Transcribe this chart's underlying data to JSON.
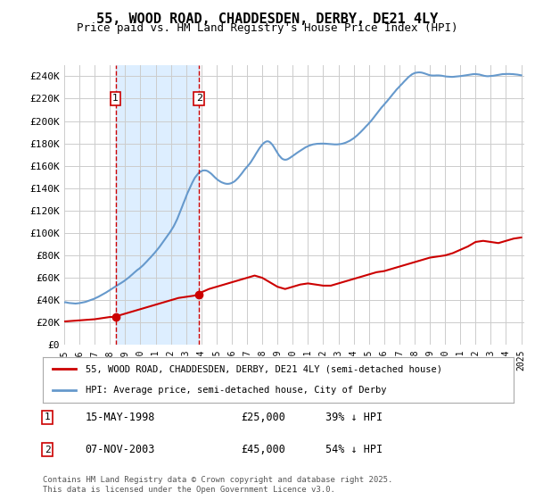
{
  "title": "55, WOOD ROAD, CHADDESDEN, DERBY, DE21 4LY",
  "subtitle": "Price paid vs. HM Land Registry's House Price Index (HPI)",
  "ylabel": "",
  "xlabel": "",
  "ylim": [
    0,
    250000
  ],
  "yticks": [
    0,
    20000,
    40000,
    60000,
    80000,
    100000,
    120000,
    140000,
    160000,
    180000,
    200000,
    220000,
    240000
  ],
  "ytick_labels": [
    "£0",
    "£20K",
    "£40K",
    "£60K",
    "£80K",
    "£100K",
    "£120K",
    "£140K",
    "£160K",
    "£180K",
    "£200K",
    "£220K",
    "£240K"
  ],
  "transactions": [
    {
      "date_num": 1998.37,
      "price": 25000,
      "label": "1",
      "date_str": "15-MAY-1998",
      "pct": "39%"
    },
    {
      "date_num": 2003.85,
      "price": 45000,
      "label": "2",
      "date_str": "07-NOV-2003",
      "pct": "54%"
    }
  ],
  "red_line_color": "#cc0000",
  "blue_line_color": "#6699cc",
  "shade_color": "#ddeeff",
  "vline_color": "#cc0000",
  "grid_color": "#cccccc",
  "background_color": "#ffffff",
  "legend_label_red": "55, WOOD ROAD, CHADDESDEN, DERBY, DE21 4LY (semi-detached house)",
  "legend_label_blue": "HPI: Average price, semi-detached house, City of Derby",
  "footer": "Contains HM Land Registry data © Crown copyright and database right 2025.\nThis data is licensed under the Open Government Licence v3.0.",
  "hpi_data": {
    "years": [
      1995.0,
      1995.08,
      1995.17,
      1995.25,
      1995.33,
      1995.42,
      1995.5,
      1995.58,
      1995.67,
      1995.75,
      1995.83,
      1995.92,
      1996.0,
      1996.08,
      1996.17,
      1996.25,
      1996.33,
      1996.42,
      1996.5,
      1996.58,
      1996.67,
      1996.75,
      1996.83,
      1996.92,
      1997.0,
      1997.08,
      1997.17,
      1997.25,
      1997.33,
      1997.42,
      1997.5,
      1997.58,
      1997.67,
      1997.75,
      1997.83,
      1997.92,
      1998.0,
      1998.08,
      1998.17,
      1998.25,
      1998.33,
      1998.42,
      1998.5,
      1998.58,
      1998.67,
      1998.75,
      1998.83,
      1998.92,
      1999.0,
      1999.08,
      1999.17,
      1999.25,
      1999.33,
      1999.42,
      1999.5,
      1999.58,
      1999.67,
      1999.75,
      1999.83,
      1999.92,
      2000.0,
      2000.08,
      2000.17,
      2000.25,
      2000.33,
      2000.42,
      2000.5,
      2000.58,
      2000.67,
      2000.75,
      2000.83,
      2000.92,
      2001.0,
      2001.08,
      2001.17,
      2001.25,
      2001.33,
      2001.42,
      2001.5,
      2001.58,
      2001.67,
      2001.75,
      2001.83,
      2001.92,
      2002.0,
      2002.08,
      2002.17,
      2002.25,
      2002.33,
      2002.42,
      2002.5,
      2002.58,
      2002.67,
      2002.75,
      2002.83,
      2002.92,
      2003.0,
      2003.08,
      2003.17,
      2003.25,
      2003.33,
      2003.42,
      2003.5,
      2003.58,
      2003.67,
      2003.75,
      2003.83,
      2003.92,
      2004.0,
      2004.08,
      2004.17,
      2004.25,
      2004.33,
      2004.42,
      2004.5,
      2004.58,
      2004.67,
      2004.75,
      2004.83,
      2004.92,
      2005.0,
      2005.08,
      2005.17,
      2005.25,
      2005.33,
      2005.42,
      2005.5,
      2005.58,
      2005.67,
      2005.75,
      2005.83,
      2005.92,
      2006.0,
      2006.08,
      2006.17,
      2006.25,
      2006.33,
      2006.42,
      2006.5,
      2006.58,
      2006.67,
      2006.75,
      2006.83,
      2006.92,
      2007.0,
      2007.08,
      2007.17,
      2007.25,
      2007.33,
      2007.42,
      2007.5,
      2007.58,
      2007.67,
      2007.75,
      2007.83,
      2007.92,
      2008.0,
      2008.08,
      2008.17,
      2008.25,
      2008.33,
      2008.42,
      2008.5,
      2008.58,
      2008.67,
      2008.75,
      2008.83,
      2008.92,
      2009.0,
      2009.08,
      2009.17,
      2009.25,
      2009.33,
      2009.42,
      2009.5,
      2009.58,
      2009.67,
      2009.75,
      2009.83,
      2009.92,
      2010.0,
      2010.08,
      2010.17,
      2010.25,
      2010.33,
      2010.42,
      2010.5,
      2010.58,
      2010.67,
      2010.75,
      2010.83,
      2010.92,
      2011.0,
      2011.08,
      2011.17,
      2011.25,
      2011.33,
      2011.42,
      2011.5,
      2011.58,
      2011.67,
      2011.75,
      2011.83,
      2011.92,
      2012.0,
      2012.08,
      2012.17,
      2012.25,
      2012.33,
      2012.42,
      2012.5,
      2012.58,
      2012.67,
      2012.75,
      2012.83,
      2012.92,
      2013.0,
      2013.08,
      2013.17,
      2013.25,
      2013.33,
      2013.42,
      2013.5,
      2013.58,
      2013.67,
      2013.75,
      2013.83,
      2013.92,
      2014.0,
      2014.08,
      2014.17,
      2014.25,
      2014.33,
      2014.42,
      2014.5,
      2014.58,
      2014.67,
      2014.75,
      2014.83,
      2014.92,
      2015.0,
      2015.08,
      2015.17,
      2015.25,
      2015.33,
      2015.42,
      2015.5,
      2015.58,
      2015.67,
      2015.75,
      2015.83,
      2015.92,
      2016.0,
      2016.08,
      2016.17,
      2016.25,
      2016.33,
      2016.42,
      2016.5,
      2016.58,
      2016.67,
      2016.75,
      2016.83,
      2016.92,
      2017.0,
      2017.08,
      2017.17,
      2017.25,
      2017.33,
      2017.42,
      2017.5,
      2017.58,
      2017.67,
      2017.75,
      2017.83,
      2017.92,
      2018.0,
      2018.08,
      2018.17,
      2018.25,
      2018.33,
      2018.42,
      2018.5,
      2018.58,
      2018.67,
      2018.75,
      2018.83,
      2018.92,
      2019.0,
      2019.08,
      2019.17,
      2019.25,
      2019.33,
      2019.42,
      2019.5,
      2019.58,
      2019.67,
      2019.75,
      2019.83,
      2019.92,
      2020.0,
      2020.08,
      2020.17,
      2020.25,
      2020.33,
      2020.42,
      2020.5,
      2020.58,
      2020.67,
      2020.75,
      2020.83,
      2020.92,
      2021.0,
      2021.08,
      2021.17,
      2021.25,
      2021.33,
      2021.42,
      2021.5,
      2021.58,
      2021.67,
      2021.75,
      2021.83,
      2021.92,
      2022.0,
      2022.08,
      2022.17,
      2022.25,
      2022.33,
      2022.42,
      2022.5,
      2022.58,
      2022.67,
      2022.75,
      2022.83,
      2022.92,
      2023.0,
      2023.08,
      2023.17,
      2023.25,
      2023.33,
      2023.42,
      2023.5,
      2023.58,
      2023.67,
      2023.75,
      2023.83,
      2023.92,
      2024.0,
      2024.08,
      2024.17,
      2024.25,
      2024.33,
      2024.42,
      2024.5,
      2024.58,
      2024.67,
      2024.75,
      2024.83,
      2024.92,
      2025.0
    ],
    "values": [
      38000,
      38200,
      37900,
      37700,
      37500,
      37400,
      37300,
      37200,
      37100,
      37000,
      37100,
      37200,
      37400,
      37600,
      37800,
      38000,
      38300,
      38600,
      39000,
      39400,
      39800,
      40200,
      40600,
      41000,
      41500,
      42000,
      42500,
      43100,
      43700,
      44300,
      44900,
      45500,
      46200,
      46900,
      47600,
      48300,
      49000,
      49800,
      50500,
      51200,
      52000,
      52700,
      53400,
      54100,
      54800,
      55500,
      56200,
      57000,
      57800,
      58600,
      59500,
      60400,
      61400,
      62400,
      63400,
      64400,
      65400,
      66400,
      67300,
      68100,
      69000,
      70000,
      71100,
      72200,
      73400,
      74600,
      75800,
      77000,
      78200,
      79500,
      80700,
      82000,
      83300,
      84700,
      86100,
      87500,
      89000,
      90600,
      92100,
      93700,
      95300,
      97000,
      98600,
      100200,
      101900,
      103700,
      105600,
      107700,
      110000,
      112500,
      115200,
      118000,
      120900,
      123800,
      126700,
      129600,
      132500,
      135300,
      138000,
      140600,
      143000,
      145300,
      147400,
      149400,
      151000,
      152500,
      153700,
      154600,
      155200,
      155700,
      155900,
      155900,
      155700,
      155200,
      154500,
      153700,
      152700,
      151600,
      150400,
      149300,
      148300,
      147400,
      146600,
      145900,
      145300,
      144800,
      144400,
      144100,
      143900,
      143900,
      144000,
      144300,
      144700,
      145300,
      146000,
      146900,
      148000,
      149200,
      150500,
      151900,
      153400,
      154900,
      156400,
      157800,
      159100,
      160400,
      161800,
      163300,
      165000,
      166800,
      168700,
      170600,
      172500,
      174300,
      176000,
      177600,
      178900,
      180100,
      181000,
      181600,
      181900,
      181700,
      181100,
      180100,
      178700,
      177100,
      175300,
      173400,
      171500,
      169700,
      168200,
      167000,
      166100,
      165600,
      165400,
      165500,
      165900,
      166500,
      167200,
      168000,
      168800,
      169600,
      170400,
      171200,
      172000,
      172800,
      173600,
      174300,
      175100,
      175800,
      176400,
      177000,
      177500,
      178000,
      178400,
      178800,
      179100,
      179300,
      179500,
      179600,
      179700,
      179700,
      179800,
      179800,
      179800,
      179800,
      179700,
      179600,
      179500,
      179400,
      179300,
      179200,
      179100,
      179100,
      179100,
      179100,
      179200,
      179300,
      179500,
      179700,
      180000,
      180400,
      180800,
      181300,
      181800,
      182400,
      183100,
      183800,
      184600,
      185500,
      186400,
      187400,
      188500,
      189600,
      190700,
      191900,
      193100,
      194300,
      195500,
      196700,
      197900,
      199200,
      200500,
      201900,
      203300,
      204800,
      206300,
      207800,
      209300,
      210700,
      212100,
      213400,
      214700,
      216000,
      217300,
      218600,
      220000,
      221400,
      222800,
      224200,
      225600,
      227000,
      228300,
      229500,
      230700,
      231900,
      233100,
      234300,
      235500,
      236700,
      237900,
      239000,
      240000,
      240900,
      241700,
      242300,
      242800,
      243100,
      243300,
      243400,
      243400,
      243300,
      243100,
      242800,
      242400,
      242000,
      241600,
      241200,
      240900,
      240700,
      240600,
      240600,
      240600,
      240700,
      240700,
      240700,
      240600,
      240500,
      240300,
      240100,
      239900,
      239700,
      239600,
      239500,
      239400,
      239400,
      239400,
      239500,
      239600,
      239700,
      239800,
      239900,
      240000,
      240200,
      240400,
      240600,
      240800,
      241000,
      241200,
      241400,
      241600,
      241700,
      241800,
      241900,
      241900,
      241800,
      241700,
      241500,
      241200,
      240900,
      240600,
      240300,
      240100,
      240000,
      240000,
      240100,
      240200,
      240300,
      240400,
      240600,
      240800,
      241100,
      241300,
      241500,
      241700,
      241800,
      241900,
      241900,
      242000,
      242000,
      242000,
      242000,
      241900,
      241900,
      241800,
      241700,
      241600,
      241400,
      241200,
      241000,
      240800
    ]
  },
  "red_data": {
    "years": [
      1995.0,
      1995.5,
      1996.0,
      1996.5,
      1997.0,
      1997.5,
      1998.0,
      1998.37,
      1998.5,
      1999.0,
      1999.5,
      2000.0,
      2000.5,
      2001.0,
      2001.5,
      2002.0,
      2002.5,
      2003.0,
      2003.5,
      2003.85,
      2004.0,
      2004.5,
      2005.0,
      2005.5,
      2006.0,
      2006.5,
      2007.0,
      2007.5,
      2008.0,
      2008.5,
      2009.0,
      2009.5,
      2010.0,
      2010.5,
      2011.0,
      2011.5,
      2012.0,
      2012.5,
      2013.0,
      2013.5,
      2014.0,
      2014.5,
      2015.0,
      2015.5,
      2016.0,
      2016.5,
      2017.0,
      2017.5,
      2018.0,
      2018.5,
      2019.0,
      2019.5,
      2020.0,
      2020.5,
      2021.0,
      2021.5,
      2022.0,
      2022.5,
      2023.0,
      2023.5,
      2024.0,
      2024.5,
      2025.0
    ],
    "values": [
      21000,
      21500,
      22000,
      22500,
      23000,
      24000,
      25000,
      25000,
      26000,
      28000,
      30000,
      32000,
      34000,
      36000,
      38000,
      40000,
      42000,
      43000,
      44000,
      45000,
      47000,
      50000,
      52000,
      54000,
      56000,
      58000,
      60000,
      62000,
      60000,
      56000,
      52000,
      50000,
      52000,
      54000,
      55000,
      54000,
      53000,
      53000,
      55000,
      57000,
      59000,
      61000,
      63000,
      65000,
      66000,
      68000,
      70000,
      72000,
      74000,
      76000,
      78000,
      79000,
      80000,
      82000,
      85000,
      88000,
      92000,
      93000,
      92000,
      91000,
      93000,
      95000,
      96000
    ]
  },
  "xmin": 1995.0,
  "xmax": 2025.2,
  "xtick_years": [
    1995,
    1996,
    1997,
    1998,
    1999,
    2000,
    2001,
    2002,
    2003,
    2004,
    2005,
    2006,
    2007,
    2008,
    2009,
    2010,
    2011,
    2012,
    2013,
    2014,
    2015,
    2016,
    2017,
    2018,
    2019,
    2020,
    2021,
    2022,
    2023,
    2024,
    2025
  ]
}
